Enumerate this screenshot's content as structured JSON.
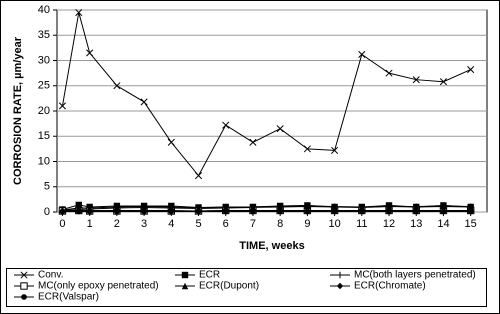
{
  "chart_data": {
    "type": "line",
    "x_label": "TIME, weeks",
    "y_label": "CORROSION RATE, µm/year",
    "x": [
      0,
      0.6,
      1,
      2,
      3,
      4,
      5,
      6,
      7,
      8,
      9,
      10,
      11,
      12,
      13,
      14,
      15
    ],
    "xlim": [
      -0.2,
      15.6
    ],
    "xticks": [
      0,
      1,
      2,
      3,
      4,
      5,
      6,
      7,
      8,
      9,
      10,
      11,
      12,
      13,
      14,
      15
    ],
    "ylim": [
      0,
      40
    ],
    "yticks": [
      0,
      5,
      10,
      15,
      20,
      25,
      30,
      35,
      40
    ],
    "grid": true,
    "series": [
      {
        "name": "Conv.",
        "color": "#000000",
        "marker": "x",
        "values": [
          21,
          39.5,
          31.5,
          25,
          21.8,
          13.8,
          7.2,
          17.2,
          13.8,
          16.5,
          12.5,
          12.2,
          31.2,
          27.5,
          26.2,
          25.8,
          28.2
        ]
      },
      {
        "name": "ECR",
        "color": "#000000",
        "marker": "square",
        "values": [
          0.5,
          1.4,
          1.0,
          1.2,
          1.2,
          1.2,
          0.9,
          1.0,
          1.0,
          1.2,
          1.3,
          1.0,
          1.0,
          1.3,
          1.0,
          1.3,
          1.0
        ]
      },
      {
        "name": "MC(both layers penetrated)",
        "color": "#000000",
        "marker": "plus",
        "values": [
          0.3,
          0.5,
          0.6,
          0.8,
          0.9,
          0.8,
          0.7,
          0.8,
          0.9,
          1.0,
          1.1,
          1.0,
          0.9,
          1.1,
          1.0,
          1.1,
          1.0
        ]
      },
      {
        "name": "MC(only epoxy penetrated)",
        "color": "#000000",
        "marker": "open-square",
        "values": [
          0.2,
          0.3,
          0.2,
          0.2,
          0.2,
          0.2,
          0.2,
          0.3,
          0.3,
          0.3,
          0.3,
          0.3,
          0.3,
          0.3,
          0.3,
          0.3,
          0.3
        ]
      },
      {
        "name": "ECR(Dupont)",
        "color": "#000000",
        "marker": "triangle",
        "values": [
          0.4,
          0.8,
          0.8,
          1.0,
          1.1,
          1.0,
          0.8,
          1.0,
          1.0,
          1.1,
          1.2,
          1.1,
          1.0,
          1.1,
          1.1,
          1.2,
          1.1
        ]
      },
      {
        "name": "ECR(Chromate)",
        "color": "#000000",
        "marker": "diamond",
        "values": [
          0.2,
          0.3,
          0.3,
          0.3,
          0.3,
          0.3,
          0.2,
          0.3,
          0.3,
          0.3,
          0.3,
          0.3,
          0.3,
          0.3,
          0.3,
          0.3,
          0.3
        ]
      },
      {
        "name": "ECR(Valspar)",
        "color": "#000000",
        "marker": "circle",
        "values": [
          0.1,
          0.1,
          0.1,
          0.1,
          0.1,
          0.1,
          0.1,
          0.1,
          0.1,
          0.1,
          0.1,
          0.1,
          0.1,
          0.1,
          0.1,
          0.1,
          0.1
        ]
      }
    ]
  }
}
